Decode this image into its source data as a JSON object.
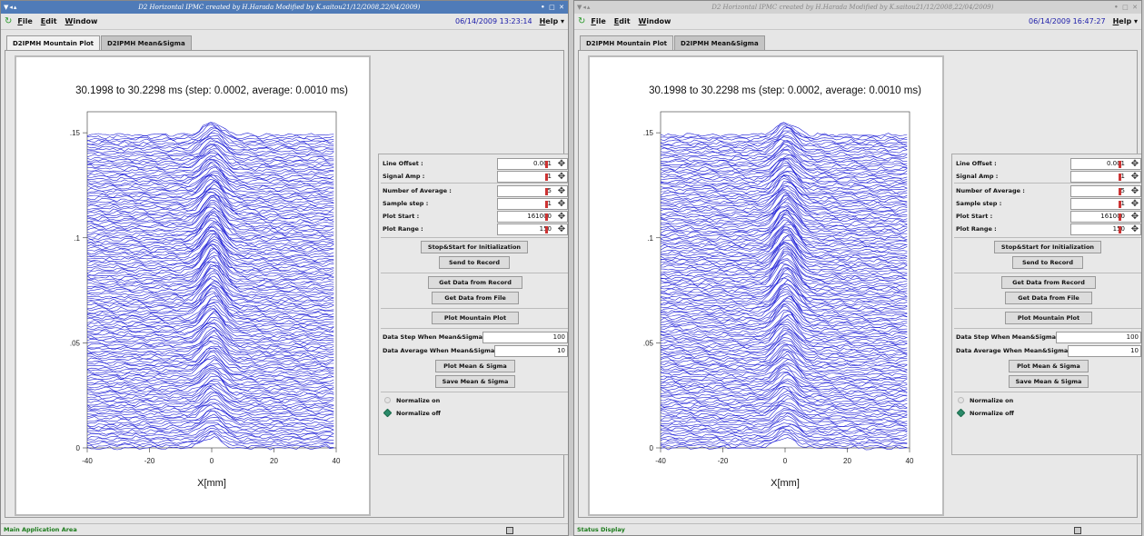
{
  "windows": [
    {
      "title": "D2 Horizontal IPMC created by H.Harada Modified by K.saitou21/12/2008,22/04/2009)",
      "window_controls": "• □ ✕",
      "menu": [
        "File",
        "Edit",
        "Window"
      ],
      "timestamp": "06/14/2009 13:23:14",
      "help": "Help ▾",
      "tabs": [
        "D2IPMH Mountain Plot",
        "D2IPMH Mean&Sigma"
      ],
      "active_tab": 1,
      "status": "Main Application Area",
      "titlebar_color": "#4f7bb8"
    },
    {
      "title": "D2 Horizontal IPMC created by H.Harada Modified by K.saitou21/12/2008,22/04/2009)",
      "window_controls": "• □ ✕",
      "menu": [
        "File",
        "Edit",
        "Window"
      ],
      "timestamp": "06/14/2009 16:47:27",
      "help": "Help ▾",
      "tabs": [
        "D2IPMH Mountain Plot",
        "D2IPMH Mean&Sigma"
      ],
      "active_tab": 0,
      "status": "Status Display",
      "titlebar_color": "#d2d2d2"
    }
  ],
  "plot": {
    "title": "30.1998 to 30.2298 ms (step:  0.0002, average:  0.0010 ms)",
    "xlabel": "X[mm]",
    "x_ticks": [
      "-40",
      "-20",
      "0",
      "20",
      "40"
    ],
    "y_ticks": [
      ".15",
      ".1",
      ".05",
      "0"
    ],
    "line_color": "#1c1cd6"
  },
  "chart_data": {
    "type": "line",
    "title": "30.1998 to 30.2298 ms (step:  0.0002, average:  0.0010 ms)",
    "xlabel": "X[mm]",
    "xlim": [
      -40,
      40
    ],
    "ylim": [
      0,
      0.16
    ],
    "x_ticks": [
      -40,
      -20,
      0,
      20,
      40
    ],
    "y_ticks": [
      0,
      0.05,
      0.1,
      0.15
    ],
    "series_count": 150,
    "line_offset_step": 0.001,
    "peak_x": 0,
    "peak_height": 0.012,
    "color": "#1c1cd6"
  },
  "controls": [
    {
      "fields": [
        {
          "label": "Line Offset :",
          "value": "0.001"
        },
        {
          "label": "Signal Amp :",
          "value": "1"
        },
        {
          "label": "Number of Average :",
          "value": "5"
        },
        {
          "label": "Sample step :",
          "value": "1"
        },
        {
          "label": "Plot Start :",
          "value": "161000"
        },
        {
          "label": "Plot Range :",
          "value": "150"
        }
      ],
      "btn_init": "Stop&Start for Initialization",
      "btn_send": "Send to Record",
      "btn_get_record": "Get Data from Record",
      "btn_get_file": "Get Data from File",
      "btn_plot_mountain": "Plot Mountain Plot",
      "step_label": "Data Step When Mean&Sigma",
      "step_value": "100",
      "avg_label": "Data Average When Mean&Sigma",
      "avg_value": "10",
      "btn_plot_mean": "Plot Mean & Sigma",
      "btn_save_mean": "Save Mean & Sigma",
      "radio_on": "Normalize on",
      "radio_off": "Normalize off"
    },
    {
      "fields": [
        {
          "label": "Line Offset :",
          "value": "0.001"
        },
        {
          "label": "Signal Amp :",
          "value": "1"
        },
        {
          "label": "Number of Average :",
          "value": "5"
        },
        {
          "label": "Sample step :",
          "value": "1"
        },
        {
          "label": "Plot Start :",
          "value": "161000"
        },
        {
          "label": "Plot Range :",
          "value": "150"
        }
      ],
      "btn_init": "Stop&Start for Initialization",
      "btn_send": "Send to Record",
      "btn_get_record": "Get Data from Record",
      "btn_get_file": "Get Data from File",
      "btn_plot_mountain": "Plot Mountain Plot",
      "step_label": "Data Step When Mean&Sigma",
      "step_value": "100",
      "avg_label": "Data Average When Mean&Sigma",
      "avg_value": "10",
      "btn_plot_mean": "Plot Mean & Sigma",
      "btn_save_mean": "Save Mean & Sigma",
      "radio_on": "Normalize on",
      "radio_off": "Normalize off"
    }
  ]
}
